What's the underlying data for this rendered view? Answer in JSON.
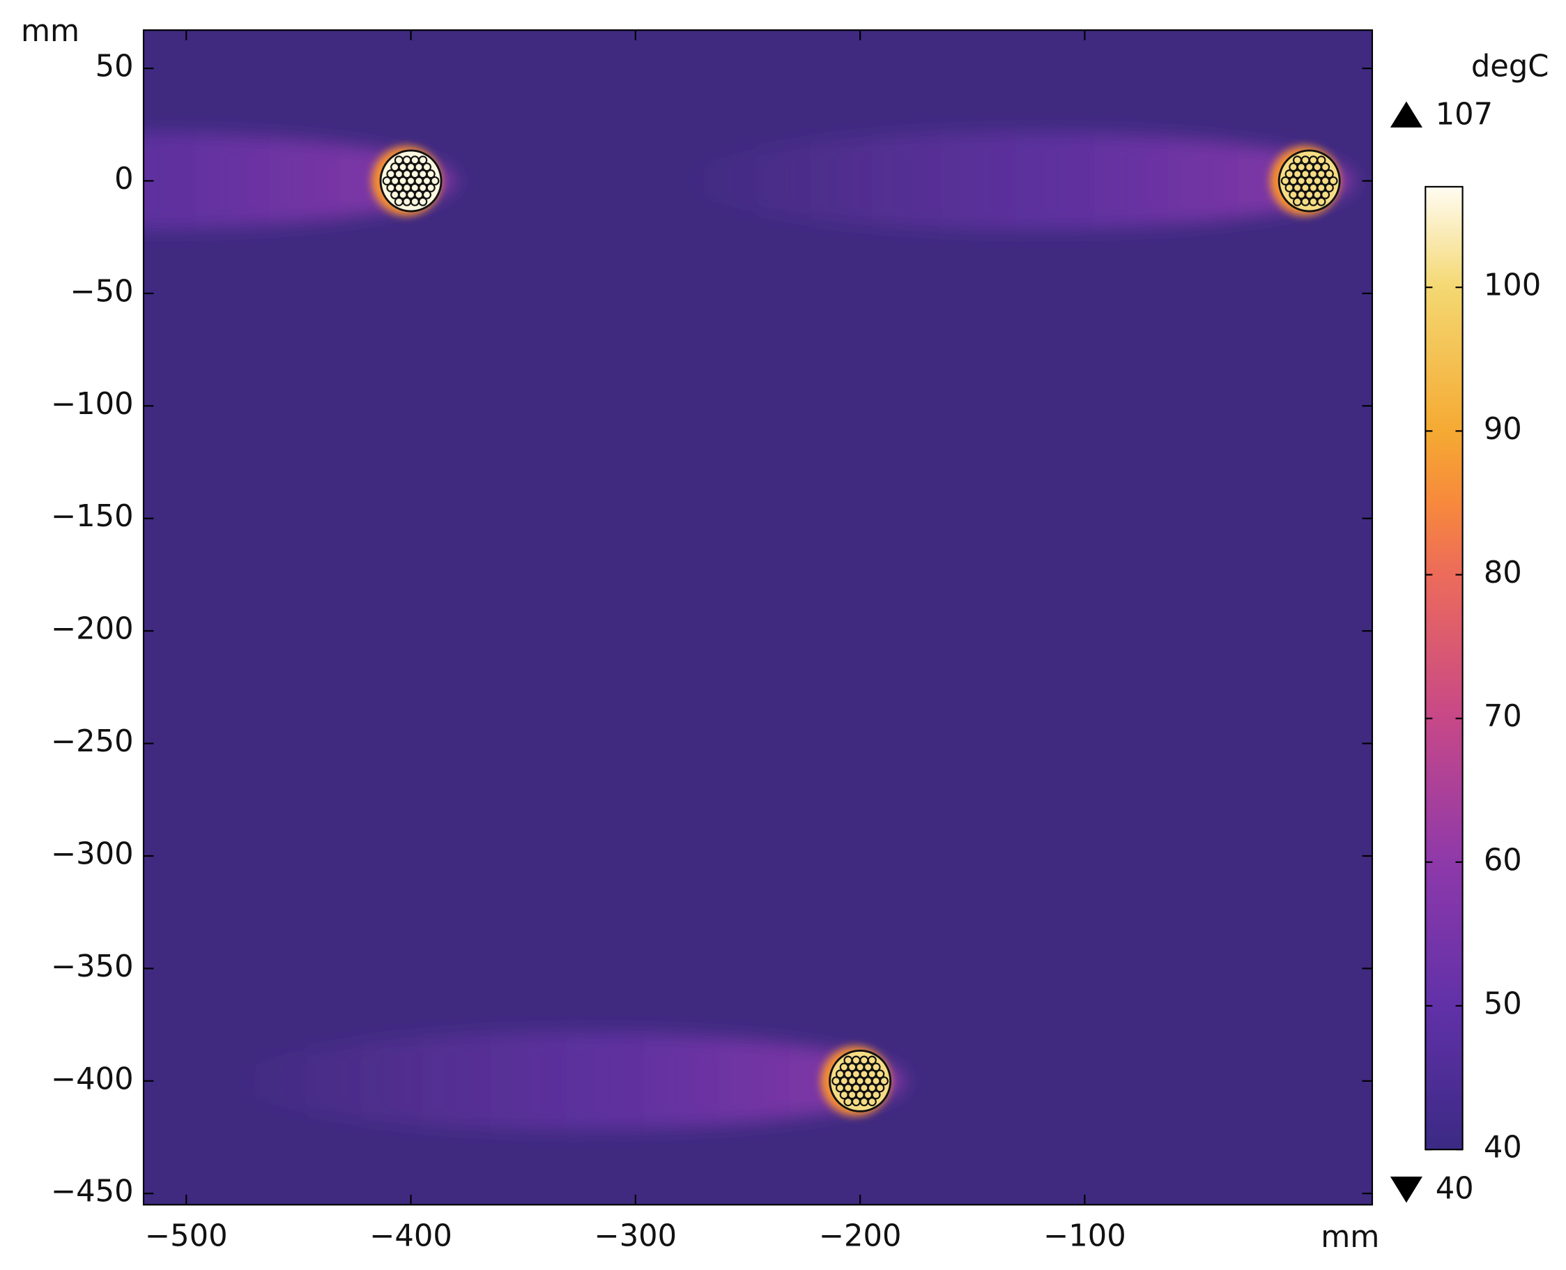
{
  "chart_data": {
    "type": "heatmap",
    "x_unit": "mm",
    "y_unit": "mm",
    "color_unit": "degC",
    "xlim": [
      -519,
      28
    ],
    "ylim": [
      -455,
      67
    ],
    "xticks": [
      {
        "value": -500,
        "label": "−500"
      },
      {
        "value": -400,
        "label": "−400"
      },
      {
        "value": -300,
        "label": "−300"
      },
      {
        "value": -200,
        "label": "−200"
      },
      {
        "value": -100,
        "label": "−100"
      }
    ],
    "yticks": [
      50,
      0,
      {
        "value": -50,
        "label": "−50"
      },
      {
        "value": -100,
        "label": "−100"
      },
      {
        "value": -150,
        "label": "−150"
      },
      {
        "value": -200,
        "label": "−200"
      },
      {
        "value": -250,
        "label": "−250"
      },
      {
        "value": -300,
        "label": "−300"
      },
      {
        "value": -350,
        "label": "−350"
      },
      {
        "value": -400,
        "label": "−400"
      },
      {
        "value": -450,
        "label": "−450"
      }
    ],
    "background_color": "#3f2a80",
    "sources": [
      {
        "x": -400,
        "y": 0,
        "color": "#fff8e0"
      },
      {
        "x": 0,
        "y": 0,
        "color": "#f6dc84"
      },
      {
        "x": -200,
        "y": -400,
        "color": "#f6dc84"
      }
    ],
    "colorbar": {
      "clim": [
        40,
        107
      ],
      "ticks": [
        40,
        50,
        60,
        70,
        80,
        90,
        100
      ],
      "max": 107,
      "min": 40,
      "stops": [
        [
          40,
          "#3b2a84"
        ],
        [
          50,
          "#6131a8"
        ],
        [
          60,
          "#8e39aa"
        ],
        [
          70,
          "#c74888"
        ],
        [
          80,
          "#ec6b5b"
        ],
        [
          85,
          "#f7893c"
        ],
        [
          90,
          "#f5aa33"
        ],
        [
          100,
          "#f4d872"
        ],
        [
          107,
          "#fffcf2"
        ]
      ]
    }
  }
}
